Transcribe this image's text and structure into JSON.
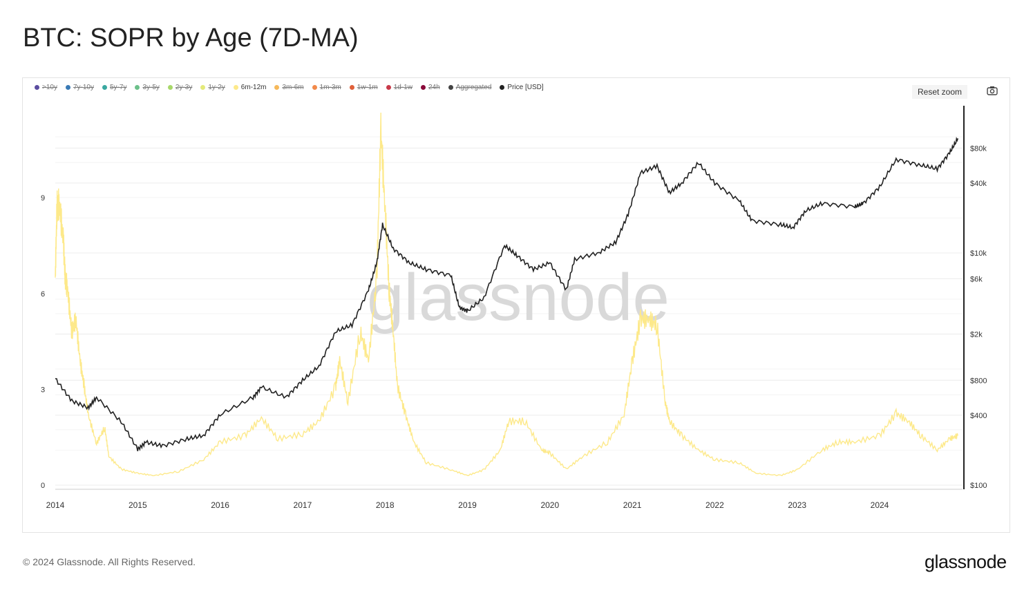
{
  "title": "BTC: SOPR by Age (7D-MA)",
  "reset_zoom": "Reset zoom",
  "footer": "© 2024 Glassnode. All Rights Reserved.",
  "brand": "glassnode",
  "watermark": "glassnode",
  "legend": [
    {
      "label": ">10y",
      "color": "#5b4da0",
      "visible": false
    },
    {
      "label": "7y-10y",
      "color": "#3a7ab5",
      "visible": false
    },
    {
      "label": "5y-7y",
      "color": "#3aa8a0",
      "visible": false
    },
    {
      "label": "3y-5y",
      "color": "#6cc08a",
      "visible": false
    },
    {
      "label": "2y-3y",
      "color": "#a8d86a",
      "visible": false
    },
    {
      "label": "1y-2y",
      "color": "#e4ea7a",
      "visible": false
    },
    {
      "label": "6m-12m",
      "color": "#fde98a",
      "visible": true
    },
    {
      "label": "3m-6m",
      "color": "#f6b95a",
      "visible": false
    },
    {
      "label": "1m-3m",
      "color": "#f28a4a",
      "visible": false
    },
    {
      "label": "1w-1m",
      "color": "#e0603a",
      "visible": false
    },
    {
      "label": "1d-1w",
      "color": "#c83a4a",
      "visible": false
    },
    {
      "label": "24h",
      "color": "#8a0a3a",
      "visible": false
    },
    {
      "label": "Aggregated",
      "color": "#444444",
      "visible": false
    },
    {
      "label": "Price [USD]",
      "color": "#222222",
      "visible": true
    }
  ],
  "chart_data": {
    "type": "line",
    "title": "BTC: SOPR by Age (7D-MA)",
    "x_ticks": [
      "2014",
      "2015",
      "2016",
      "2017",
      "2018",
      "2019",
      "2020",
      "2021",
      "2022",
      "2023",
      "2024"
    ],
    "xlim": [
      2014,
      2024.95
    ],
    "y_left": {
      "ticks": [
        "0",
        "3",
        "6",
        "9"
      ],
      "ylim": [
        0,
        12
      ]
    },
    "y_right": {
      "scale": "log",
      "ticks": [
        "$100",
        "$400",
        "$800",
        "$2k",
        "$6k",
        "$10k",
        "$40k",
        "$80k"
      ],
      "tick_values": [
        100,
        400,
        800,
        2000,
        6000,
        10000,
        40000,
        80000
      ],
      "ylim": [
        100,
        150000
      ]
    },
    "grid": true,
    "legend_position": "top-left",
    "series": [
      {
        "name": "6m-12m",
        "axis": "left",
        "color": "#fde98a",
        "x": [
          2014.0,
          2014.02,
          2014.05,
          2014.1,
          2014.12,
          2014.15,
          2014.2,
          2014.25,
          2014.3,
          2014.35,
          2014.4,
          2014.5,
          2014.6,
          2014.65,
          2014.8,
          2015.0,
          2015.2,
          2015.5,
          2015.8,
          2016.0,
          2016.3,
          2016.5,
          2016.7,
          2017.0,
          2017.2,
          2017.4,
          2017.45,
          2017.55,
          2017.7,
          2017.8,
          2017.9,
          2017.95,
          2018.0,
          2018.05,
          2018.1,
          2018.15,
          2018.25,
          2018.35,
          2018.5,
          2018.8,
          2019.0,
          2019.2,
          2019.4,
          2019.5,
          2019.7,
          2019.9,
          2020.0,
          2020.2,
          2020.4,
          2020.7,
          2020.9,
          2021.0,
          2021.1,
          2021.2,
          2021.3,
          2021.4,
          2021.45,
          2021.6,
          2021.8,
          2022.0,
          2022.3,
          2022.5,
          2022.8,
          2023.0,
          2023.3,
          2023.5,
          2023.7,
          2024.0,
          2024.2,
          2024.35,
          2024.5,
          2024.7,
          2024.85,
          2024.95
        ],
        "y": [
          6.5,
          8.7,
          8.8,
          7.6,
          6.5,
          6.1,
          4.8,
          5.2,
          3.9,
          3.1,
          2.2,
          1.3,
          1.8,
          0.9,
          0.5,
          0.37,
          0.3,
          0.43,
          0.8,
          1.35,
          1.55,
          2.1,
          1.45,
          1.6,
          2.0,
          3.07,
          3.9,
          2.6,
          4.8,
          3.9,
          6.5,
          11.1,
          8.7,
          6.1,
          4.8,
          3.1,
          2.2,
          1.35,
          0.7,
          0.48,
          0.3,
          0.48,
          1.1,
          2.0,
          2.0,
          1.1,
          1.0,
          0.5,
          0.9,
          1.35,
          2.2,
          3.9,
          5.2,
          5.2,
          5.0,
          2.6,
          2.0,
          1.55,
          1.1,
          0.8,
          0.7,
          0.37,
          0.3,
          0.48,
          1.1,
          1.35,
          1.35,
          1.55,
          2.25,
          2.0,
          1.55,
          1.1,
          1.45,
          1.55
        ]
      },
      {
        "name": "Price [USD]",
        "axis": "right",
        "color": "#222222",
        "x": [
          2014.0,
          2014.2,
          2014.4,
          2014.5,
          2014.8,
          2015.0,
          2015.1,
          2015.3,
          2015.6,
          2015.8,
          2016.0,
          2016.4,
          2016.5,
          2016.8,
          2017.0,
          2017.2,
          2017.4,
          2017.6,
          2017.8,
          2017.9,
          2017.97,
          2018.1,
          2018.3,
          2018.5,
          2018.8,
          2018.9,
          2019.0,
          2019.2,
          2019.45,
          2019.6,
          2019.8,
          2020.0,
          2020.2,
          2020.3,
          2020.6,
          2020.8,
          2020.95,
          2021.1,
          2021.3,
          2021.45,
          2021.6,
          2021.8,
          2022.0,
          2022.3,
          2022.45,
          2022.8,
          2022.95,
          2023.1,
          2023.3,
          2023.7,
          2023.8,
          2024.0,
          2024.2,
          2024.5,
          2024.7,
          2024.85,
          2024.95
        ],
        "y": [
          826,
          532,
          464,
          570,
          352,
          204,
          234,
          218,
          250,
          268,
          405,
          570,
          700,
          570,
          800,
          1060,
          2100,
          2400,
          4800,
          8200,
          17500,
          10900,
          8200,
          7200,
          6400,
          3400,
          3160,
          4100,
          11600,
          9500,
          7200,
          8200,
          4800,
          8800,
          10100,
          12400,
          21600,
          49000,
          56000,
          33000,
          40000,
          60000,
          40000,
          28000,
          19000,
          17500,
          16500,
          23000,
          26700,
          25000,
          26700,
          37000,
          64000,
          57000,
          53000,
          73000,
          97000
        ]
      }
    ]
  }
}
